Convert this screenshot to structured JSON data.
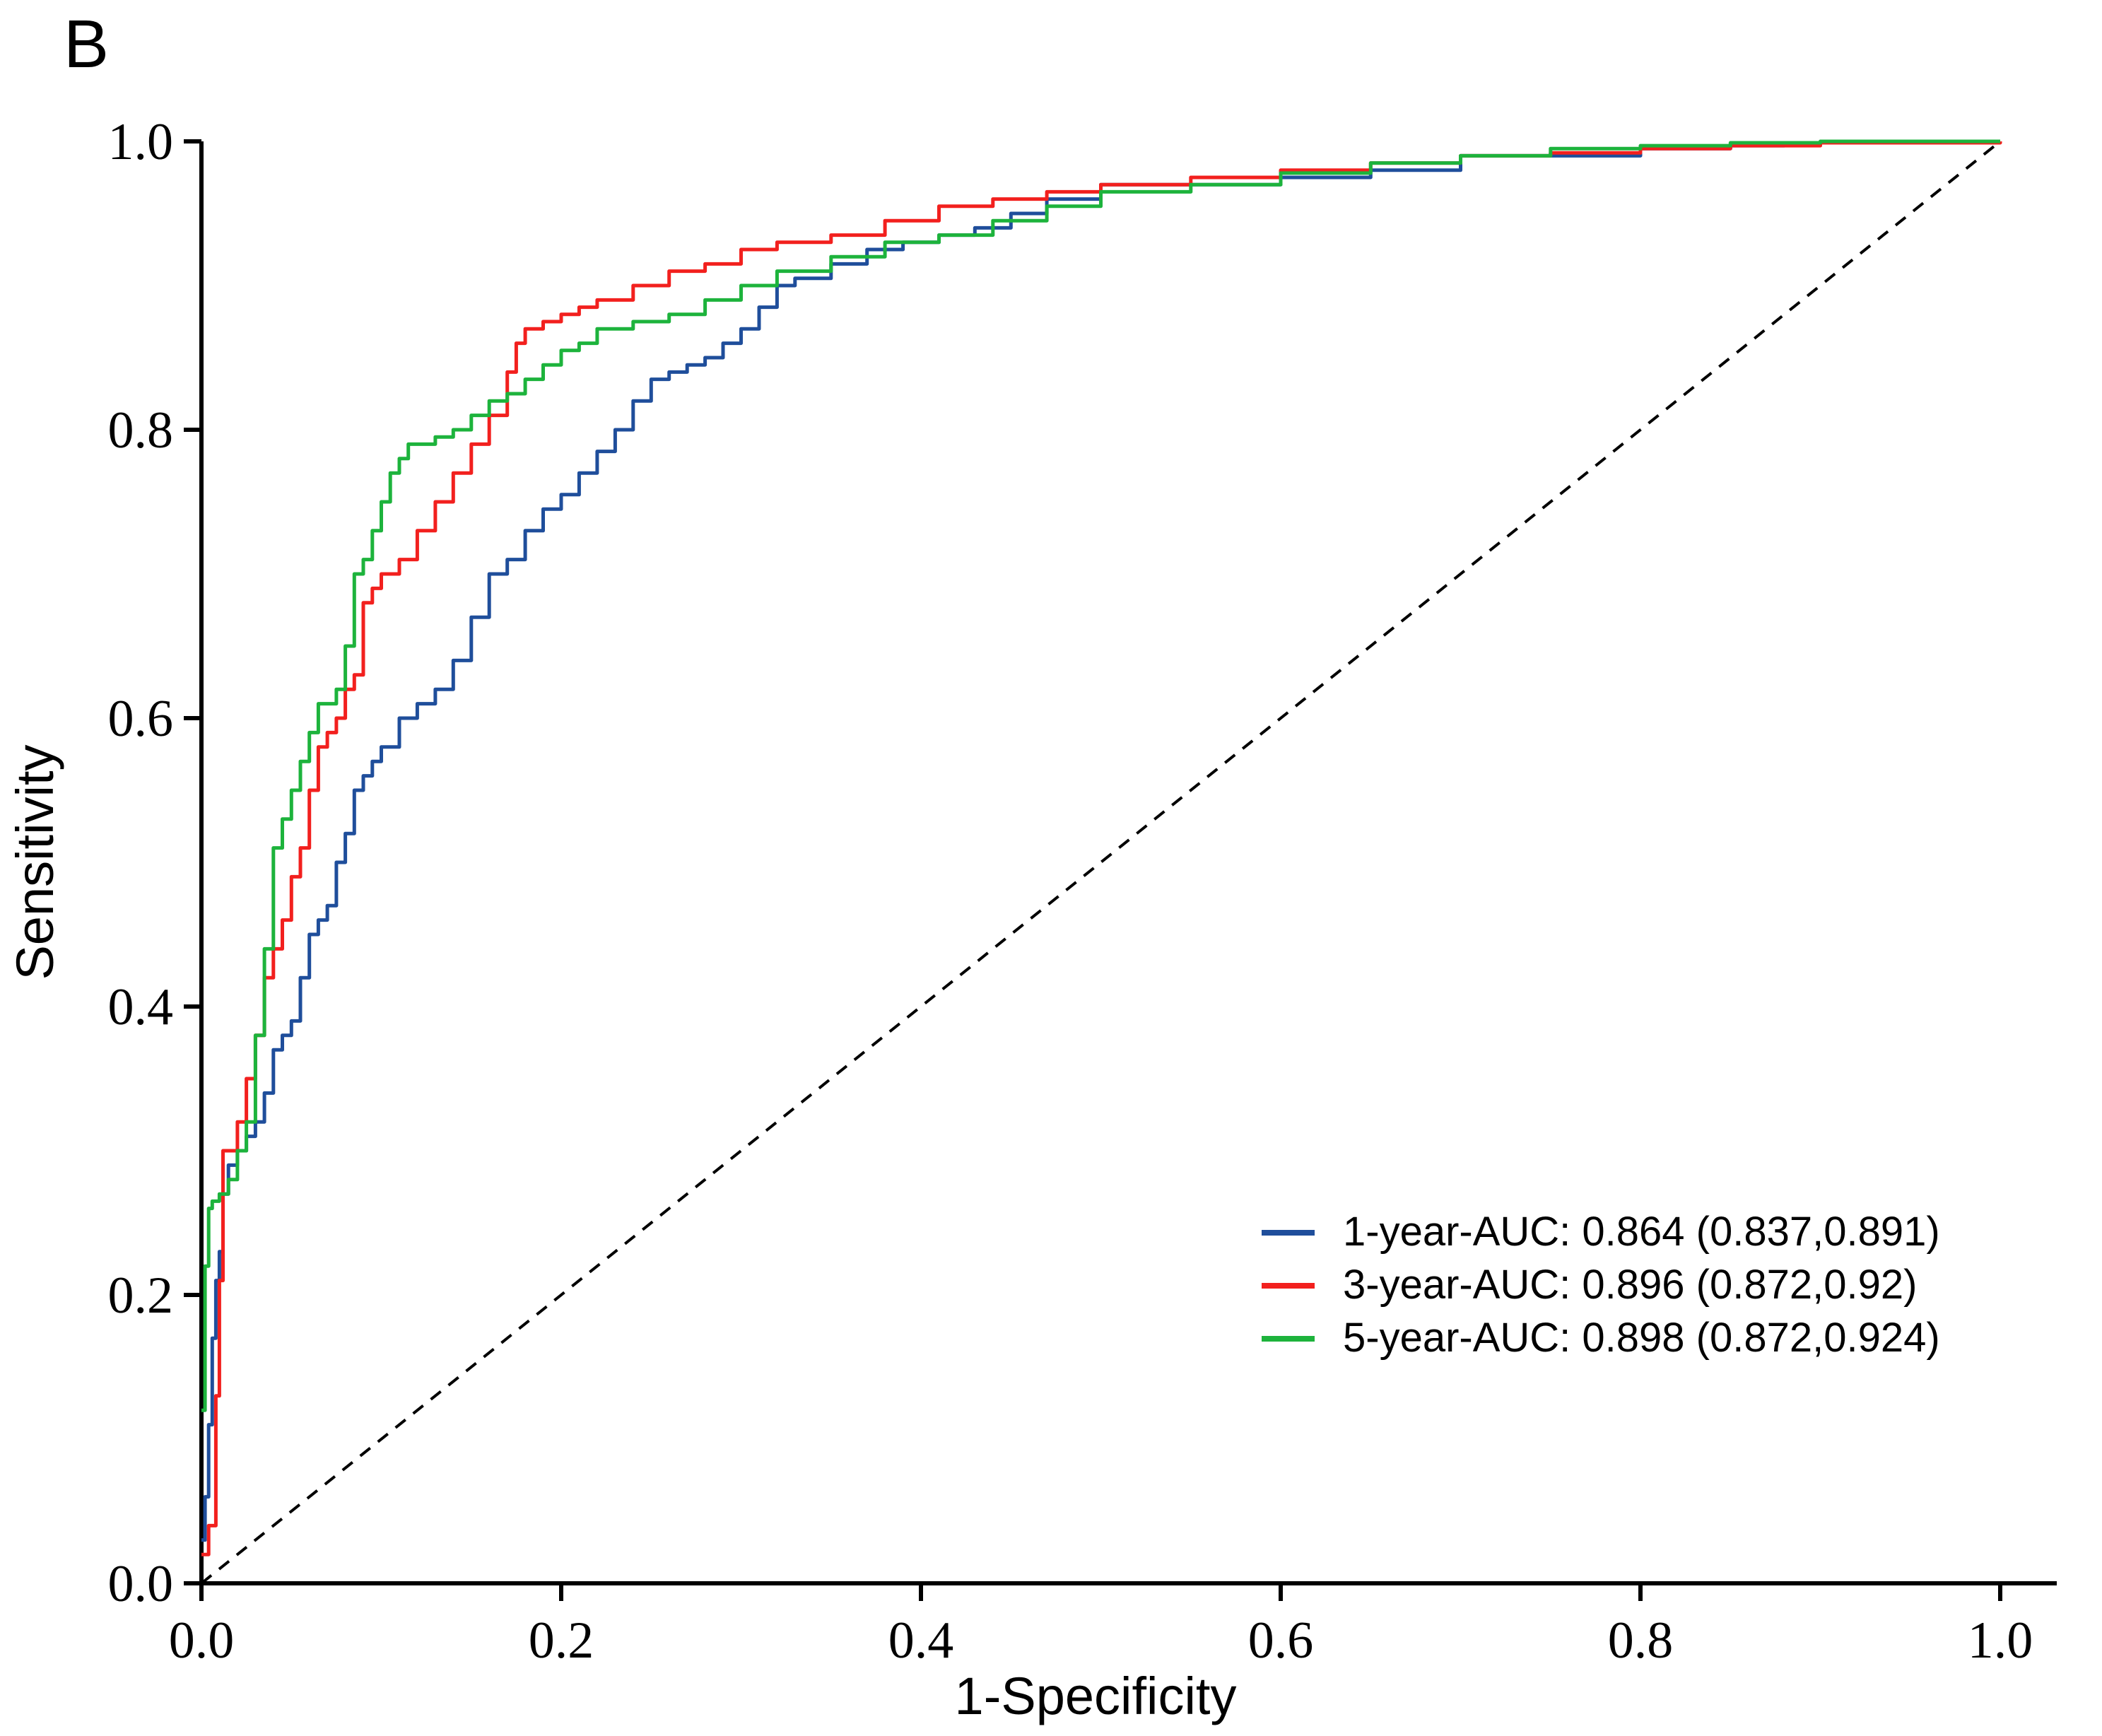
{
  "panel_label": "B",
  "chart_data": {
    "type": "line",
    "xlabel": "1-Specificity",
    "ylabel": "Sensitivity",
    "xlim": [
      0,
      1
    ],
    "ylim": [
      0,
      1
    ],
    "x_ticks": [
      "0.0",
      "0.2",
      "0.4",
      "0.6",
      "0.8",
      "1.0"
    ],
    "y_ticks": [
      "0.0",
      "0.2",
      "0.4",
      "0.6",
      "0.8",
      "1.0"
    ],
    "grid": false,
    "legend_position": "bottom-right",
    "reference_line": {
      "name": "chance",
      "x": [
        0,
        1
      ],
      "y": [
        0,
        1
      ],
      "style": "dashed",
      "color": "#000000"
    },
    "series": [
      {
        "name": "1-year-AUC: 0.864 (0.837,0.891)",
        "color": "#1F4E9B",
        "x": [
          0,
          0.002,
          0.004,
          0.006,
          0.008,
          0.01,
          0.012,
          0.015,
          0.02,
          0.025,
          0.03,
          0.035,
          0.04,
          0.045,
          0.05,
          0.055,
          0.06,
          0.065,
          0.07,
          0.075,
          0.08,
          0.085,
          0.09,
          0.095,
          0.1,
          0.11,
          0.12,
          0.13,
          0.14,
          0.15,
          0.16,
          0.17,
          0.18,
          0.19,
          0.2,
          0.21,
          0.22,
          0.23,
          0.24,
          0.25,
          0.26,
          0.27,
          0.28,
          0.29,
          0.3,
          0.31,
          0.32,
          0.33,
          0.35,
          0.37,
          0.39,
          0.41,
          0.43,
          0.45,
          0.47,
          0.5,
          0.55,
          0.6,
          0.65,
          0.7,
          0.75,
          0.8,
          0.85,
          0.88
        ],
        "y": [
          0.03,
          0.06,
          0.11,
          0.17,
          0.21,
          0.23,
          0.27,
          0.29,
          0.3,
          0.31,
          0.32,
          0.34,
          0.37,
          0.38,
          0.39,
          0.42,
          0.45,
          0.46,
          0.47,
          0.5,
          0.52,
          0.55,
          0.56,
          0.57,
          0.58,
          0.6,
          0.61,
          0.62,
          0.64,
          0.67,
          0.7,
          0.71,
          0.73,
          0.745,
          0.755,
          0.77,
          0.785,
          0.8,
          0.82,
          0.835,
          0.84,
          0.845,
          0.85,
          0.86,
          0.87,
          0.885,
          0.9,
          0.905,
          0.915,
          0.925,
          0.93,
          0.935,
          0.94,
          0.95,
          0.96,
          0.97,
          0.97,
          0.975,
          0.98,
          0.99,
          0.99,
          0.995,
          0.997,
          0.998
        ]
      },
      {
        "name": "3-year-AUC: 0.896 (0.872,0.92)",
        "color": "#F2201E",
        "x": [
          0,
          0.004,
          0.008,
          0.01,
          0.012,
          0.015,
          0.02,
          0.025,
          0.03,
          0.035,
          0.04,
          0.045,
          0.05,
          0.055,
          0.06,
          0.065,
          0.07,
          0.075,
          0.08,
          0.085,
          0.09,
          0.095,
          0.1,
          0.11,
          0.12,
          0.13,
          0.14,
          0.15,
          0.16,
          0.17,
          0.175,
          0.18,
          0.19,
          0.2,
          0.21,
          0.22,
          0.24,
          0.26,
          0.28,
          0.3,
          0.32,
          0.35,
          0.38,
          0.41,
          0.44,
          0.47,
          0.5,
          0.55,
          0.6,
          0.65,
          0.7,
          0.75,
          0.8,
          0.85,
          0.9,
          1.0
        ],
        "y": [
          0.02,
          0.04,
          0.13,
          0.21,
          0.3,
          0.3,
          0.32,
          0.35,
          0.38,
          0.42,
          0.44,
          0.46,
          0.49,
          0.51,
          0.55,
          0.58,
          0.59,
          0.6,
          0.62,
          0.63,
          0.68,
          0.69,
          0.7,
          0.71,
          0.73,
          0.75,
          0.77,
          0.79,
          0.81,
          0.84,
          0.86,
          0.87,
          0.875,
          0.88,
          0.885,
          0.89,
          0.9,
          0.91,
          0.915,
          0.925,
          0.93,
          0.935,
          0.945,
          0.955,
          0.96,
          0.965,
          0.97,
          0.975,
          0.98,
          0.985,
          0.99,
          0.992,
          0.995,
          0.997,
          0.999,
          1.0
        ]
      },
      {
        "name": "5-year-AUC: 0.898 (0.872,0.924)",
        "color": "#1DB33C",
        "x": [
          0,
          0.002,
          0.004,
          0.006,
          0.01,
          0.015,
          0.02,
          0.025,
          0.03,
          0.035,
          0.04,
          0.045,
          0.05,
          0.055,
          0.06,
          0.065,
          0.07,
          0.075,
          0.08,
          0.085,
          0.09,
          0.095,
          0.1,
          0.105,
          0.11,
          0.115,
          0.12,
          0.13,
          0.14,
          0.15,
          0.16,
          0.17,
          0.18,
          0.19,
          0.2,
          0.21,
          0.22,
          0.24,
          0.26,
          0.28,
          0.3,
          0.32,
          0.35,
          0.38,
          0.41,
          0.44,
          0.47,
          0.5,
          0.55,
          0.6,
          0.65,
          0.7,
          0.75,
          0.8,
          0.85,
          0.9,
          1.0
        ],
        "y": [
          0.12,
          0.22,
          0.26,
          0.265,
          0.27,
          0.28,
          0.3,
          0.32,
          0.38,
          0.44,
          0.51,
          0.53,
          0.55,
          0.57,
          0.59,
          0.61,
          0.61,
          0.62,
          0.65,
          0.7,
          0.71,
          0.73,
          0.75,
          0.77,
          0.78,
          0.79,
          0.79,
          0.795,
          0.8,
          0.81,
          0.82,
          0.825,
          0.835,
          0.845,
          0.855,
          0.86,
          0.87,
          0.875,
          0.88,
          0.89,
          0.9,
          0.91,
          0.92,
          0.93,
          0.935,
          0.945,
          0.955,
          0.965,
          0.97,
          0.978,
          0.985,
          0.99,
          0.995,
          0.997,
          0.999,
          1.0,
          1.0
        ]
      }
    ]
  }
}
